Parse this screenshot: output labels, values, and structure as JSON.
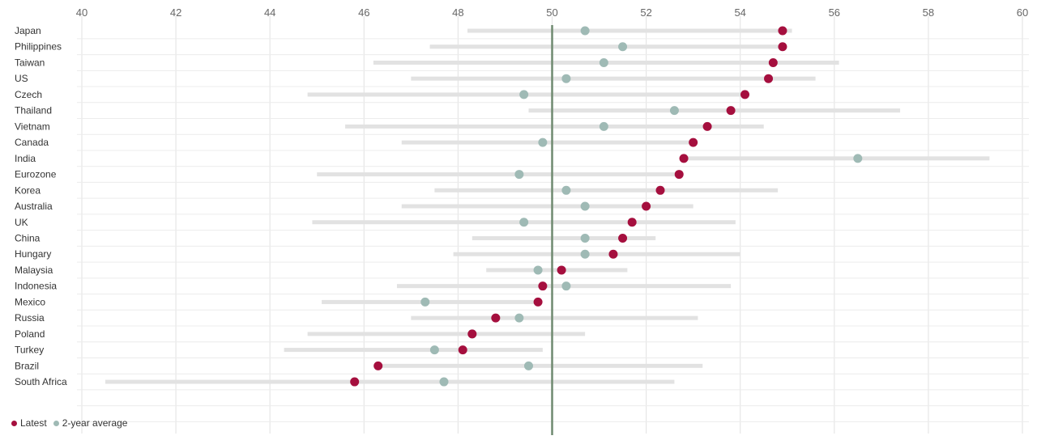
{
  "colors": {
    "latest": "#a50f3e",
    "avg": "#9fbab5",
    "range": "#e2e2e2",
    "grid": "#e6e6e6",
    "row_line": "#ececec",
    "ref_line": "#6f8a70"
  },
  "legend": {
    "latest_label": "Latest",
    "avg_label": "2-year average"
  },
  "chart_data": {
    "type": "dot-range",
    "x_ticks": [
      40,
      42,
      44,
      46,
      48,
      50,
      52,
      54,
      56,
      58,
      60
    ],
    "xlim": [
      40,
      60
    ],
    "reference_line": 50,
    "grid": true,
    "legend_position": "bottom-left",
    "series": [
      {
        "name": "Latest",
        "key": "latest"
      },
      {
        "name": "2-year average",
        "key": "avg"
      }
    ],
    "rows": [
      {
        "country": "Japan",
        "min": 48.2,
        "max": 55.1,
        "latest": 54.9,
        "avg": 50.7
      },
      {
        "country": "Philippines",
        "min": 47.4,
        "max": 54.9,
        "latest": 54.9,
        "avg": 51.5
      },
      {
        "country": "Taiwan",
        "min": 46.2,
        "max": 56.1,
        "latest": 54.7,
        "avg": 51.1
      },
      {
        "country": "US",
        "min": 47.0,
        "max": 55.6,
        "latest": 54.6,
        "avg": 50.3
      },
      {
        "country": "Czech",
        "min": 44.8,
        "max": 54.1,
        "latest": 54.1,
        "avg": 49.4
      },
      {
        "country": "Thailand",
        "min": 49.5,
        "max": 57.4,
        "latest": 53.8,
        "avg": 52.6
      },
      {
        "country": "Vietnam",
        "min": 45.6,
        "max": 54.5,
        "latest": 53.3,
        "avg": 51.1
      },
      {
        "country": "Canada",
        "min": 46.8,
        "max": 53.0,
        "latest": 53.0,
        "avg": 49.8
      },
      {
        "country": "India",
        "min": 52.8,
        "max": 59.3,
        "latest": 52.8,
        "avg": 56.5
      },
      {
        "country": "Eurozone",
        "min": 45.0,
        "max": 52.7,
        "latest": 52.7,
        "avg": 49.3
      },
      {
        "country": "Korea",
        "min": 47.5,
        "max": 54.8,
        "latest": 52.3,
        "avg": 50.3
      },
      {
        "country": "Australia",
        "min": 46.8,
        "max": 53.0,
        "latest": 52.0,
        "avg": 50.7
      },
      {
        "country": "UK",
        "min": 44.9,
        "max": 53.9,
        "latest": 51.7,
        "avg": 49.4
      },
      {
        "country": "China",
        "min": 48.3,
        "max": 52.2,
        "latest": 51.5,
        "avg": 50.7
      },
      {
        "country": "Hungary",
        "min": 47.9,
        "max": 54.0,
        "latest": 51.3,
        "avg": 50.7
      },
      {
        "country": "Malaysia",
        "min": 48.6,
        "max": 51.6,
        "latest": 50.2,
        "avg": 49.7
      },
      {
        "country": "Indonesia",
        "min": 46.7,
        "max": 53.8,
        "latest": 49.8,
        "avg": 50.3
      },
      {
        "country": "Mexico",
        "min": 45.1,
        "max": 49.7,
        "latest": 49.7,
        "avg": 47.3
      },
      {
        "country": "Russia",
        "min": 47.0,
        "max": 53.1,
        "latest": 48.8,
        "avg": 49.3
      },
      {
        "country": "Poland",
        "min": 44.8,
        "max": 50.7,
        "latest": 48.3,
        "avg": 48.3
      },
      {
        "country": "Turkey",
        "min": 44.3,
        "max": 49.8,
        "latest": 48.1,
        "avg": 47.5
      },
      {
        "country": "Brazil",
        "min": 46.3,
        "max": 53.2,
        "latest": 46.3,
        "avg": 49.5
      },
      {
        "country": "South Africa",
        "min": 40.5,
        "max": 52.6,
        "latest": 45.8,
        "avg": 47.7
      }
    ]
  }
}
